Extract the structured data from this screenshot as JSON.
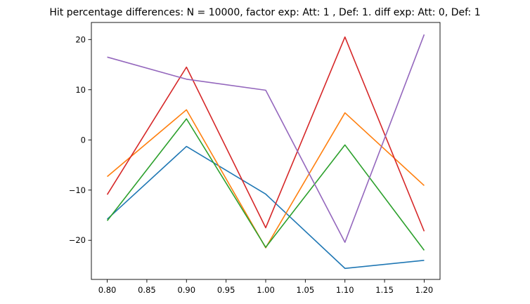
{
  "chart_data": {
    "type": "line",
    "title": "Hit percentage differences: N = 10000, factor exp: Att: 1 , Def: 1. diff exp: Att: 0, Def: 1",
    "xlabel": "",
    "ylabel": "",
    "x": [
      0.8,
      0.9,
      1.0,
      1.1,
      1.2
    ],
    "xlim": [
      0.78,
      1.22
    ],
    "ylim": [
      -27.8,
      23.4
    ],
    "xticks": [
      0.8,
      0.85,
      0.9,
      0.95,
      1.0,
      1.05,
      1.1,
      1.15,
      1.2
    ],
    "xtick_labels": [
      "0.80",
      "0.85",
      "0.90",
      "0.95",
      "1.00",
      "1.05",
      "1.10",
      "1.15",
      "1.20"
    ],
    "yticks": [
      -20,
      -10,
      0,
      10,
      20
    ],
    "ytick_labels": [
      "−20",
      "−10",
      "0",
      "10",
      "20"
    ],
    "grid": false,
    "legend": "none",
    "series": [
      {
        "color": "#1f77b4",
        "values": [
          -15.8,
          -1.3,
          -10.8,
          -25.6,
          -24.0
        ]
      },
      {
        "color": "#ff7f0e",
        "values": [
          -7.3,
          6.0,
          -21.5,
          5.4,
          -9.1
        ]
      },
      {
        "color": "#2ca02c",
        "values": [
          -16.1,
          4.2,
          -21.4,
          -1.0,
          -22.0
        ]
      },
      {
        "color": "#d62728",
        "values": [
          -10.9,
          14.5,
          -17.5,
          20.5,
          -18.2
        ]
      },
      {
        "color": "#9467bd",
        "values": [
          16.5,
          12.1,
          9.9,
          -20.4,
          21.0
        ]
      }
    ]
  }
}
